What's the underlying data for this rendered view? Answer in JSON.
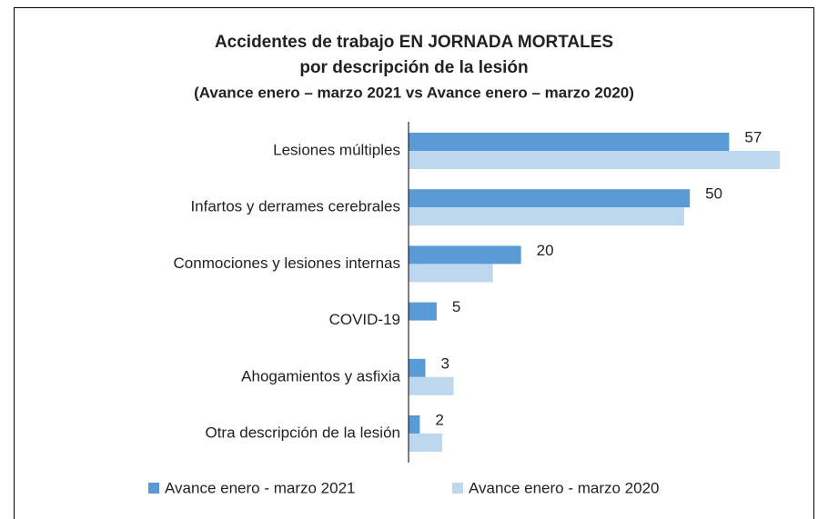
{
  "chart_data": {
    "type": "bar",
    "orientation": "horizontal",
    "title": [
      "Accidentes de trabajo EN JORNADA MORTALES",
      "por descripción de la lesión",
      "(Avance enero – marzo 2021 vs Avance enero – marzo 2020)"
    ],
    "categories": [
      "Lesiones múltiples",
      "Infartos y derrames cerebrales",
      "Conmociones y lesiones internas",
      "COVID-19",
      "Ahogamientos y asfixia",
      "Otra descripción de la lesión"
    ],
    "series": [
      {
        "name": "Avance enero - marzo 2021",
        "color": "#5b9bd5",
        "values": [
          57,
          50,
          20,
          5,
          3,
          2
        ],
        "show_labels": true
      },
      {
        "name": "Avance enero - marzo 2020",
        "color": "#bdd7ee",
        "values": [
          66,
          49,
          15,
          null,
          8,
          6
        ],
        "show_labels": false
      }
    ],
    "xlim": [
      0,
      66
    ],
    "legend": "bottom"
  }
}
